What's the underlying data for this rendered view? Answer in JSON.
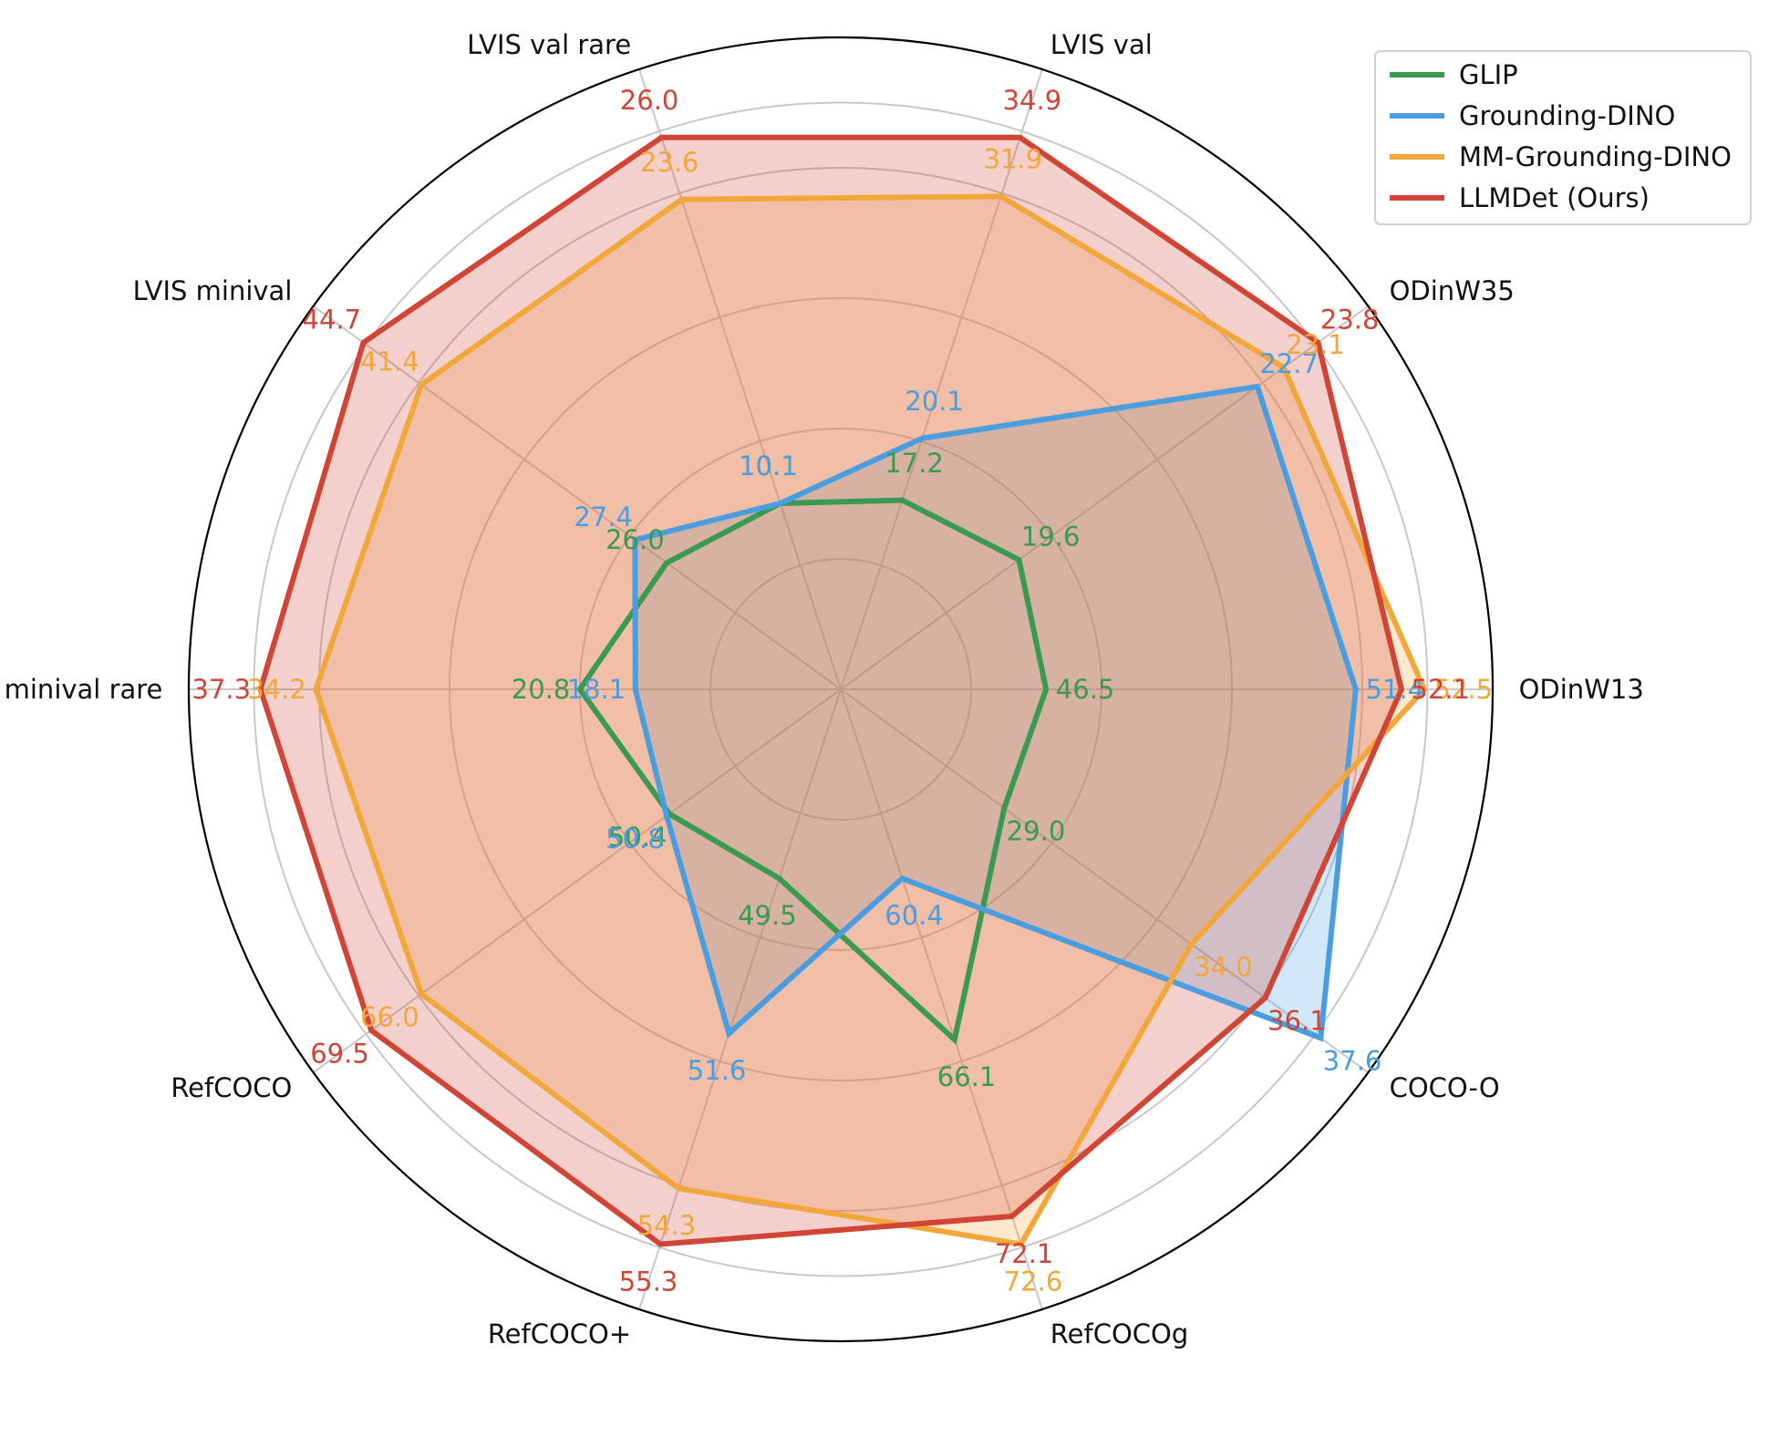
{
  "chart_data": {
    "type": "radar",
    "title": "",
    "legend_position": "top-right",
    "grid": true,
    "axes": [
      "ODinW13",
      "ODinW35",
      "LVIS val",
      "LVIS val rare",
      "LVIS minival",
      "LVIS minival rare",
      "RefCOCO",
      "RefCOCO+",
      "RefCOCOg",
      "COCO-O"
    ],
    "series": [
      {
        "name": "GLIP",
        "color": "#3a9a4f",
        "fill": false,
        "labels": [
          "46.5",
          "19.6",
          "17.2",
          "10.1",
          "26.0",
          "20.8",
          "50.4",
          "49.5",
          "66.1",
          "29.0"
        ],
        "radius_fraction": [
          0.315,
          0.338,
          0.305,
          0.3,
          0.33,
          0.4,
          0.325,
          0.305,
          0.565,
          0.31
        ]
      },
      {
        "name": "Grounding-DINO",
        "color": "#4a9ee0",
        "fill": true,
        "labels": [
          "51.4",
          "22.7",
          "20.1",
          "10.1",
          "27.4",
          "18.1",
          "50.8",
          "51.6",
          "60.4",
          "37.6"
        ],
        "radius_fraction": [
          0.79,
          0.79,
          0.405,
          0.3,
          0.39,
          0.315,
          0.33,
          0.555,
          0.305,
          0.91
        ]
      },
      {
        "name": "MM-Grounding-DINO",
        "color": "#f2a73b",
        "fill": true,
        "labels": [
          "52.5",
          "23.1",
          "31.9",
          "23.6",
          "41.4",
          "34.2",
          "66.0",
          "54.3",
          "72.6",
          "34.0"
        ],
        "radius_fraction": [
          0.895,
          0.84,
          0.795,
          0.79,
          0.795,
          0.805,
          0.795,
          0.805,
          0.895,
          0.665
        ]
      },
      {
        "name": "LLMDet (Ours)",
        "color": "#d04535",
        "fill": true,
        "labels": [
          "52.1",
          "23.8",
          "34.9",
          "26.0",
          "44.7",
          "37.3",
          "69.5",
          "55.3",
          "72.1",
          "36.1"
        ],
        "radius_fraction": [
          0.86,
          0.905,
          0.89,
          0.89,
          0.905,
          0.89,
          0.89,
          0.895,
          0.85,
          0.805
        ]
      }
    ]
  }
}
